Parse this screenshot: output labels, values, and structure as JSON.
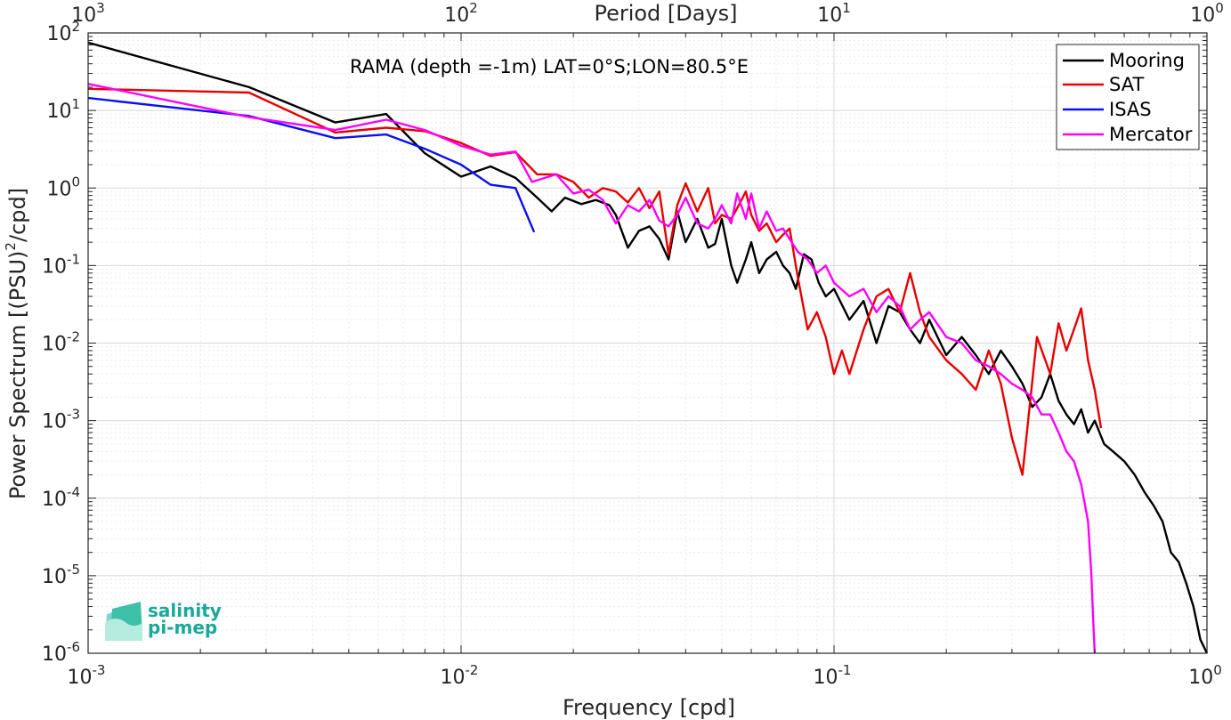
{
  "chart_data": {
    "type": "line",
    "title": "",
    "annotation": "RAMA (depth =-1m) LAT=0°S;LON=80.5°E",
    "xlabel": "Frequency [cpd]",
    "ylabel": "Power Spectrum [(PSU)",
    "ylabel_sup": "2",
    "ylabel_suffix": "/cpd]",
    "top_xlabel": "Period [Days]",
    "xscale": "log",
    "yscale": "log",
    "xlim": [
      0.001,
      1
    ],
    "ylim": [
      1e-06,
      100
    ],
    "grid": true,
    "legend_position": "top-right",
    "x_ticks": [
      {
        "base": "10",
        "exp": "-3",
        "value": 0.001
      },
      {
        "base": "10",
        "exp": "-2",
        "value": 0.01
      },
      {
        "base": "10",
        "exp": "-1",
        "value": 0.1
      },
      {
        "base": "10",
        "exp": "0",
        "value": 1
      }
    ],
    "top_ticks": [
      {
        "base": "10",
        "exp": "3",
        "value": 0.001
      },
      {
        "base": "10",
        "exp": "2",
        "value": 0.01
      },
      {
        "base": "10",
        "exp": "1",
        "value": 0.1
      },
      {
        "base": "10",
        "exp": "0",
        "value": 1
      }
    ],
    "y_ticks": [
      {
        "base": "10",
        "exp": "2",
        "value": 100
      },
      {
        "base": "10",
        "exp": "1",
        "value": 10
      },
      {
        "base": "10",
        "exp": "0",
        "value": 1
      },
      {
        "base": "10",
        "exp": "-1",
        "value": 0.1
      },
      {
        "base": "10",
        "exp": "-2",
        "value": 0.01
      },
      {
        "base": "10",
        "exp": "-3",
        "value": 0.001
      },
      {
        "base": "10",
        "exp": "-4",
        "value": 0.0001
      },
      {
        "base": "10",
        "exp": "-5",
        "value": 1e-05
      },
      {
        "base": "10",
        "exp": "-6",
        "value": 1e-06
      }
    ],
    "series": [
      {
        "name": "Mooring",
        "color": "#000000",
        "x": [
          0.001,
          0.0027,
          0.0046,
          0.0063,
          0.008,
          0.01,
          0.012,
          0.014,
          0.016,
          0.0175,
          0.019,
          0.021,
          0.023,
          0.025,
          0.026,
          0.028,
          0.03,
          0.032,
          0.034,
          0.036,
          0.038,
          0.04,
          0.043,
          0.046,
          0.048,
          0.05,
          0.053,
          0.055,
          0.058,
          0.06,
          0.063,
          0.066,
          0.07,
          0.073,
          0.076,
          0.079,
          0.083,
          0.087,
          0.091,
          0.095,
          0.1,
          0.11,
          0.12,
          0.13,
          0.14,
          0.15,
          0.16,
          0.17,
          0.18,
          0.2,
          0.22,
          0.24,
          0.26,
          0.28,
          0.3,
          0.32,
          0.34,
          0.36,
          0.38,
          0.4,
          0.42,
          0.44,
          0.46,
          0.48,
          0.5,
          0.53,
          0.56,
          0.6,
          0.64,
          0.68,
          0.72,
          0.76,
          0.8,
          0.84,
          0.88,
          0.92,
          0.96,
          1.0
        ],
        "values": [
          75,
          20,
          7,
          9,
          2.8,
          1.4,
          1.9,
          1.35,
          0.75,
          0.5,
          0.75,
          0.62,
          0.7,
          0.6,
          0.45,
          0.17,
          0.28,
          0.32,
          0.22,
          0.12,
          0.5,
          0.2,
          0.4,
          0.17,
          0.19,
          0.4,
          0.1,
          0.06,
          0.12,
          0.2,
          0.08,
          0.12,
          0.15,
          0.1,
          0.08,
          0.05,
          0.14,
          0.12,
          0.06,
          0.04,
          0.05,
          0.02,
          0.035,
          0.01,
          0.03,
          0.025,
          0.015,
          0.01,
          0.02,
          0.007,
          0.012,
          0.007,
          0.004,
          0.008,
          0.005,
          0.003,
          0.0015,
          0.002,
          0.004,
          0.0018,
          0.0012,
          0.0009,
          0.0014,
          0.0007,
          0.001,
          0.0005,
          0.0004,
          0.0003,
          0.0002,
          0.00012,
          8e-05,
          5e-05,
          2e-05,
          1.5e-05,
          8e-06,
          4e-06,
          1.5e-06,
          9e-07
        ]
      },
      {
        "name": "SAT",
        "color": "#e80000",
        "x": [
          0.001,
          0.0027,
          0.0046,
          0.0063,
          0.008,
          0.01,
          0.012,
          0.014,
          0.016,
          0.018,
          0.02,
          0.022,
          0.024,
          0.026,
          0.028,
          0.03,
          0.032,
          0.034,
          0.036,
          0.038,
          0.04,
          0.043,
          0.046,
          0.048,
          0.05,
          0.053,
          0.055,
          0.058,
          0.06,
          0.063,
          0.066,
          0.07,
          0.073,
          0.076,
          0.08,
          0.085,
          0.09,
          0.095,
          0.1,
          0.105,
          0.11,
          0.12,
          0.13,
          0.14,
          0.15,
          0.16,
          0.17,
          0.18,
          0.2,
          0.22,
          0.24,
          0.26,
          0.28,
          0.3,
          0.32,
          0.35,
          0.38,
          0.4,
          0.42,
          0.44,
          0.46,
          0.48,
          0.5,
          0.52
        ],
        "values": [
          19,
          17,
          5.2,
          6,
          5.4,
          3.8,
          2.6,
          2.9,
          1.5,
          1.5,
          1.2,
          0.75,
          1,
          0.9,
          0.65,
          1,
          0.55,
          0.9,
          0.14,
          0.6,
          1.15,
          0.5,
          1,
          0.35,
          0.45,
          0.4,
          0.55,
          0.9,
          0.45,
          0.28,
          0.35,
          0.2,
          0.25,
          0.3,
          0.07,
          0.015,
          0.025,
          0.012,
          0.004,
          0.008,
          0.004,
          0.015,
          0.04,
          0.05,
          0.025,
          0.08,
          0.025,
          0.012,
          0.006,
          0.004,
          0.0025,
          0.008,
          0.003,
          0.0006,
          0.0002,
          0.012,
          0.004,
          0.018,
          0.008,
          0.015,
          0.028,
          0.006,
          0.0025,
          0.0008
        ]
      },
      {
        "name": "ISAS",
        "color": "#0a10f0",
        "x": [
          0.001,
          0.0027,
          0.0046,
          0.0063,
          0.008,
          0.01,
          0.012,
          0.014,
          0.0157
        ],
        "values": [
          14.5,
          8.5,
          4.4,
          4.9,
          3.2,
          2,
          1.1,
          1,
          0.27
        ]
      },
      {
        "name": "Mercator",
        "color": "#ff00ff",
        "x": [
          0.001,
          0.0027,
          0.0046,
          0.0063,
          0.008,
          0.01,
          0.012,
          0.014,
          0.0155,
          0.018,
          0.02,
          0.022,
          0.024,
          0.026,
          0.028,
          0.03,
          0.032,
          0.034,
          0.036,
          0.038,
          0.04,
          0.043,
          0.046,
          0.048,
          0.05,
          0.053,
          0.055,
          0.058,
          0.06,
          0.063,
          0.066,
          0.07,
          0.073,
          0.076,
          0.08,
          0.085,
          0.09,
          0.095,
          0.1,
          0.11,
          0.12,
          0.13,
          0.14,
          0.15,
          0.16,
          0.17,
          0.18,
          0.2,
          0.22,
          0.24,
          0.26,
          0.28,
          0.3,
          0.32,
          0.34,
          0.36,
          0.38,
          0.4,
          0.42,
          0.44,
          0.46,
          0.48,
          0.49,
          0.495,
          0.5
        ],
        "values": [
          22,
          8.2,
          5.6,
          7.6,
          5.6,
          3.5,
          2.7,
          2.95,
          1.2,
          1.5,
          0.85,
          0.95,
          0.7,
          0.35,
          0.6,
          0.5,
          0.7,
          0.38,
          0.32,
          0.45,
          0.75,
          0.35,
          0.3,
          0.4,
          0.6,
          0.35,
          0.85,
          0.4,
          0.85,
          0.3,
          0.5,
          0.28,
          0.3,
          0.22,
          0.15,
          0.12,
          0.08,
          0.1,
          0.06,
          0.04,
          0.05,
          0.025,
          0.04,
          0.03,
          0.015,
          0.02,
          0.025,
          0.012,
          0.01,
          0.006,
          0.005,
          0.004,
          0.003,
          0.0025,
          0.002,
          0.0012,
          0.0012,
          0.0007,
          0.0004,
          0.0003,
          0.00015,
          5e-05,
          1e-05,
          3e-06,
          1e-06
        ]
      }
    ]
  },
  "logo": {
    "line1": "salinity",
    "line2": "pi-mep"
  }
}
